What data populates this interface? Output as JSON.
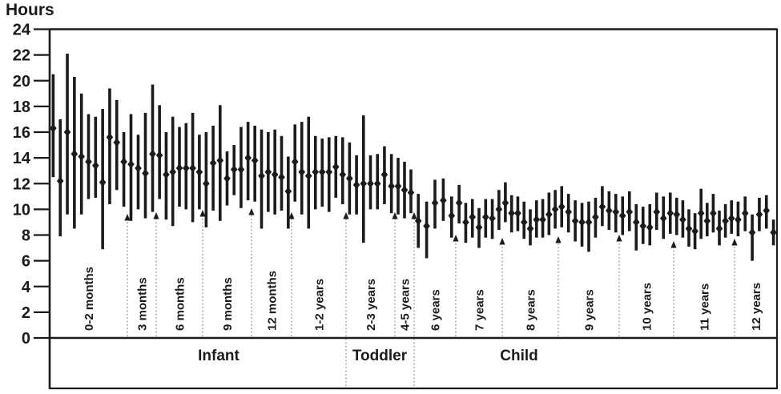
{
  "chart_data": {
    "type": "scatter",
    "error_bars": true,
    "marker": "diamond",
    "title": "",
    "ylabel": "Hours",
    "xlabel": "",
    "ylim": [
      0,
      24
    ],
    "ytick_step": 2,
    "grid": false,
    "legend": "none",
    "description": "Sleep duration per study: diamond = mean hours, vertical bar = min-max range, grouped by age band with arrows marking group boundaries",
    "stages": [
      {
        "label": "Infant"
      },
      {
        "label": "Toddler"
      },
      {
        "label": "Child"
      }
    ],
    "groups": [
      {
        "label": "0-2 months",
        "stage": "Infant",
        "points": [
          {
            "mean": 16.3,
            "min": 12.5,
            "max": 20.5
          },
          {
            "mean": 12.2,
            "min": 7.9,
            "max": 17.0
          },
          {
            "mean": 16.0,
            "min": 9.6,
            "max": 22.1
          },
          {
            "mean": 14.3,
            "min": 8.5,
            "max": 20.3
          },
          {
            "mean": 14.1,
            "min": 9.6,
            "max": 19.0
          },
          {
            "mean": 13.7,
            "min": 10.8,
            "max": 17.4
          },
          {
            "mean": 13.4,
            "min": 10.9,
            "max": 17.2
          },
          {
            "mean": 12.1,
            "min": 6.9,
            "max": 17.8
          },
          {
            "mean": 15.6,
            "min": 10.4,
            "max": 19.4
          },
          {
            "mean": 15.2,
            "min": 11.5,
            "max": 18.5
          },
          {
            "mean": 13.7,
            "min": 10.2,
            "max": 16.0
          }
        ]
      },
      {
        "label": "3 months",
        "stage": "Infant",
        "points": [
          {
            "mean": 13.5,
            "min": 9.1,
            "max": 17.4
          },
          {
            "mean": 13.2,
            "min": 10.0,
            "max": 15.8
          },
          {
            "mean": 12.8,
            "min": 9.3,
            "max": 17.5
          },
          {
            "mean": 14.3,
            "min": 9.8,
            "max": 19.7
          }
        ]
      },
      {
        "label": "6 months",
        "stage": "Infant",
        "points": [
          {
            "mean": 14.2,
            "min": 10.8,
            "max": 18.1
          },
          {
            "mean": 12.7,
            "min": 9.2,
            "max": 16.0
          },
          {
            "mean": 12.9,
            "min": 8.7,
            "max": 17.2
          },
          {
            "mean": 13.2,
            "min": 10.2,
            "max": 16.4
          },
          {
            "mean": 13.2,
            "min": 10.0,
            "max": 16.7
          },
          {
            "mean": 13.2,
            "min": 9.0,
            "max": 17.5
          },
          {
            "mean": 12.9,
            "min": 10.0,
            "max": 15.8
          }
        ]
      },
      {
        "label": "9 months",
        "stage": "Infant",
        "points": [
          {
            "mean": 12.0,
            "min": 8.6,
            "max": 16.0
          },
          {
            "mean": 13.6,
            "min": 9.9,
            "max": 16.5
          },
          {
            "mean": 13.8,
            "min": 9.1,
            "max": 18.1
          },
          {
            "mean": 12.4,
            "min": 10.3,
            "max": 14.5
          },
          {
            "mean": 13.1,
            "min": 11.1,
            "max": 15.0
          },
          {
            "mean": 13.1,
            "min": 10.1,
            "max": 16.4
          },
          {
            "mean": 14.0,
            "min": 10.7,
            "max": 16.8
          }
        ]
      },
      {
        "label": "12 months",
        "stage": "Infant",
        "points": [
          {
            "mean": 13.8,
            "min": 10.6,
            "max": 16.5
          },
          {
            "mean": 12.6,
            "min": 8.5,
            "max": 16.2
          },
          {
            "mean": 12.9,
            "min": 9.8,
            "max": 16.0
          },
          {
            "mean": 12.7,
            "min": 9.6,
            "max": 16.2
          },
          {
            "mean": 12.5,
            "min": 9.9,
            "max": 15.7
          },
          {
            "mean": 11.4,
            "min": 8.5,
            "max": 14.1
          }
        ]
      },
      {
        "label": "1-2 years",
        "stage": "Infant",
        "points": [
          {
            "mean": 13.7,
            "min": 10.6,
            "max": 16.6
          },
          {
            "mean": 12.9,
            "min": 9.6,
            "max": 16.8
          },
          {
            "mean": 12.6,
            "min": 8.5,
            "max": 17.2
          },
          {
            "mean": 12.9,
            "min": 10.0,
            "max": 15.7
          },
          {
            "mean": 12.9,
            "min": 10.2,
            "max": 15.5
          },
          {
            "mean": 12.9,
            "min": 9.8,
            "max": 15.6
          },
          {
            "mean": 13.3,
            "min": 10.9,
            "max": 15.7
          },
          {
            "mean": 12.7,
            "min": 10.4,
            "max": 15.6
          }
        ]
      },
      {
        "label": "2-3 years",
        "stage": "Toddler",
        "points": [
          {
            "mean": 12.4,
            "min": 9.6,
            "max": 15.2
          },
          {
            "mean": 11.9,
            "min": 9.6,
            "max": 14.2
          },
          {
            "mean": 12.0,
            "min": 7.4,
            "max": 17.3
          },
          {
            "mean": 12.0,
            "min": 10.0,
            "max": 14.2
          },
          {
            "mean": 12.0,
            "min": 10.0,
            "max": 14.3
          },
          {
            "mean": 12.7,
            "min": 10.4,
            "max": 14.9
          },
          {
            "mean": 11.8,
            "min": 9.7,
            "max": 14.3
          }
        ]
      },
      {
        "label": "4-5 years",
        "stage": "Toddler",
        "points": [
          {
            "mean": 11.8,
            "min": 9.6,
            "max": 14.0
          },
          {
            "mean": 11.5,
            "min": 9.3,
            "max": 13.7
          },
          {
            "mean": 11.3,
            "min": 9.7,
            "max": 13.1
          }
        ]
      },
      {
        "label": "6 years",
        "stage": "Child",
        "points": [
          {
            "mean": 9.1,
            "min": 7.0,
            "max": 11.2
          },
          {
            "mean": 8.7,
            "min": 6.2,
            "max": 10.6
          },
          {
            "mean": 10.5,
            "min": 8.5,
            "max": 12.3
          },
          {
            "mean": 10.7,
            "min": 9.1,
            "max": 12.4
          },
          {
            "mean": 9.5,
            "min": 7.8,
            "max": 11.0
          }
        ]
      },
      {
        "label": "7 years",
        "stage": "Child",
        "points": [
          {
            "mean": 10.5,
            "min": 8.9,
            "max": 11.9
          },
          {
            "mean": 9.0,
            "min": 7.4,
            "max": 10.5
          },
          {
            "mean": 9.4,
            "min": 7.8,
            "max": 10.8
          },
          {
            "mean": 8.6,
            "min": 7.0,
            "max": 10.1
          },
          {
            "mean": 9.4,
            "min": 7.8,
            "max": 10.8
          },
          {
            "mean": 9.3,
            "min": 7.7,
            "max": 10.8
          },
          {
            "mean": 10.0,
            "min": 8.4,
            "max": 11.5
          }
        ]
      },
      {
        "label": "8 years",
        "stage": "Child",
        "points": [
          {
            "mean": 10.5,
            "min": 9.0,
            "max": 12.1
          },
          {
            "mean": 9.7,
            "min": 8.2,
            "max": 11.1
          },
          {
            "mean": 9.7,
            "min": 8.3,
            "max": 11.0
          },
          {
            "mean": 9.0,
            "min": 7.7,
            "max": 10.6
          },
          {
            "mean": 8.5,
            "min": 7.2,
            "max": 10.0
          },
          {
            "mean": 9.2,
            "min": 7.8,
            "max": 10.7
          },
          {
            "mean": 9.2,
            "min": 7.8,
            "max": 10.8
          },
          {
            "mean": 9.6,
            "min": 8.0,
            "max": 11.3
          },
          {
            "mean": 10.0,
            "min": 8.5,
            "max": 11.5
          }
        ]
      },
      {
        "label": "9 years",
        "stage": "Child",
        "points": [
          {
            "mean": 10.2,
            "min": 8.6,
            "max": 11.8
          },
          {
            "mean": 9.8,
            "min": 8.2,
            "max": 11.2
          },
          {
            "mean": 9.1,
            "min": 7.5,
            "max": 10.7
          },
          {
            "mean": 9.0,
            "min": 7.1,
            "max": 10.5
          },
          {
            "mean": 9.0,
            "min": 6.7,
            "max": 10.6
          },
          {
            "mean": 9.4,
            "min": 7.8,
            "max": 10.9
          },
          {
            "mean": 10.2,
            "min": 8.7,
            "max": 11.8
          },
          {
            "mean": 9.9,
            "min": 8.4,
            "max": 11.4
          },
          {
            "mean": 9.8,
            "min": 8.2,
            "max": 11.2
          }
        ]
      },
      {
        "label": "10 years",
        "stage": "Child",
        "points": [
          {
            "mean": 9.5,
            "min": 8.0,
            "max": 11.0
          },
          {
            "mean": 9.8,
            "min": 8.3,
            "max": 11.4
          },
          {
            "mean": 9.0,
            "min": 6.8,
            "max": 10.4
          },
          {
            "mean": 8.7,
            "min": 7.3,
            "max": 10.2
          },
          {
            "mean": 8.6,
            "min": 7.2,
            "max": 10.4
          },
          {
            "mean": 9.8,
            "min": 8.4,
            "max": 11.3
          },
          {
            "mean": 9.3,
            "min": 7.7,
            "max": 11.0
          },
          {
            "mean": 9.7,
            "min": 8.1,
            "max": 11.3
          }
        ]
      },
      {
        "label": "11 years",
        "stage": "Child",
        "points": [
          {
            "mean": 9.6,
            "min": 8.0,
            "max": 10.9
          },
          {
            "mean": 9.2,
            "min": 7.8,
            "max": 10.7
          },
          {
            "mean": 8.5,
            "min": 7.1,
            "max": 10.0
          },
          {
            "mean": 8.3,
            "min": 6.9,
            "max": 9.7
          },
          {
            "mean": 9.7,
            "min": 7.7,
            "max": 11.6
          },
          {
            "mean": 9.1,
            "min": 7.9,
            "max": 10.5
          },
          {
            "mean": 9.7,
            "min": 8.2,
            "max": 11.2
          },
          {
            "mean": 8.5,
            "min": 7.2,
            "max": 9.9
          },
          {
            "mean": 9.1,
            "min": 7.8,
            "max": 10.4
          },
          {
            "mean": 9.3,
            "min": 8.1,
            "max": 10.7
          }
        ]
      },
      {
        "label": "12 years",
        "stage": "Child",
        "points": [
          {
            "mean": 9.2,
            "min": 7.9,
            "max": 10.6
          },
          {
            "mean": 9.7,
            "min": 8.3,
            "max": 11.0
          },
          {
            "mean": 8.2,
            "min": 6.0,
            "max": 9.6
          },
          {
            "mean": 9.6,
            "min": 8.3,
            "max": 10.9
          },
          {
            "mean": 9.9,
            "min": 8.5,
            "max": 11.1
          },
          {
            "mean": 8.2,
            "min": 7.2,
            "max": 9.2
          }
        ]
      }
    ],
    "colors": {
      "data": "#1b1b1b",
      "arrow_line": "#9c9c9c",
      "arrow_head": "#1b1b1b",
      "axis": "#1b1b1b",
      "background": "#ffffff"
    }
  }
}
